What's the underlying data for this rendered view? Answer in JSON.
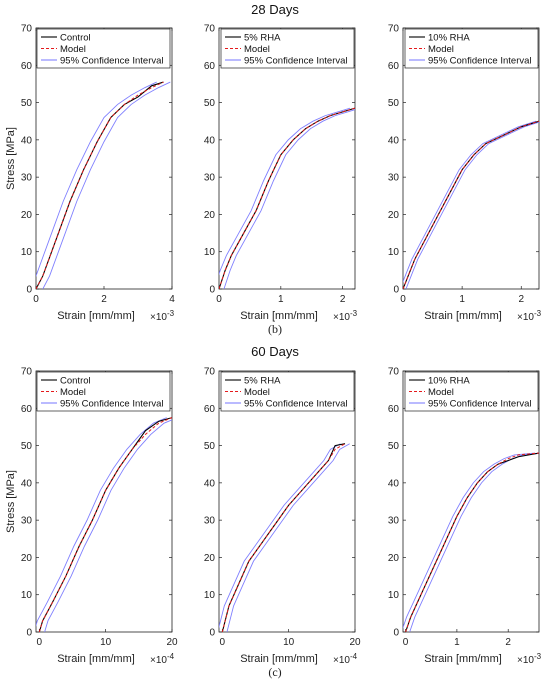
{
  "row_titles": [
    "28 Days",
    "60 Days"
  ],
  "captions": [
    "(b)",
    "(c)"
  ],
  "ylabel": "Stress [MPa]",
  "xlabel": "Strain [mm/mm]",
  "legend_labels": {
    "model": "Model",
    "ci": "95% Confidence Interval"
  },
  "colors": {
    "measured": "#000000",
    "model": "#e41a1c",
    "ci": "#8080ff"
  },
  "chart_data": [
    {
      "type": "line",
      "row": 0,
      "col": 0,
      "legend_name": "Control",
      "xlim": [
        0,
        4
      ],
      "xticks": [
        "0",
        "2",
        "4"
      ],
      "multiplier": "×10",
      "multiplier_exp": "-3",
      "ylim": [
        0,
        70
      ],
      "yticks": [
        "0",
        "10",
        "20",
        "30",
        "40",
        "50",
        "60",
        "70"
      ],
      "legend": "top-left",
      "x": [
        0,
        0.2,
        0.6,
        1.0,
        1.4,
        1.8,
        2.2,
        2.6,
        3.0,
        3.4,
        3.75
      ],
      "measured": [
        0,
        3.5,
        13.5,
        23.5,
        32,
        39.5,
        46,
        49.5,
        51.5,
        54.5,
        55.5
      ],
      "model": [
        0,
        3.5,
        13.5,
        23.5,
        32,
        39.5,
        46,
        49.5,
        52,
        54,
        55.5
      ],
      "ci_offset": 0.2
    },
    {
      "type": "line",
      "row": 0,
      "col": 1,
      "legend_name": "5% RHA",
      "xlim": [
        0,
        2.2
      ],
      "xticks": [
        "0",
        "1",
        "2"
      ],
      "multiplier": "×10",
      "multiplier_exp": "-3",
      "ylim": [
        0,
        70
      ],
      "yticks": [
        "0",
        "10",
        "20",
        "30",
        "40",
        "50",
        "60",
        "70"
      ],
      "legend": "top-right",
      "x": [
        0,
        0.1,
        0.2,
        0.4,
        0.6,
        0.8,
        1.0,
        1.2,
        1.4,
        1.6,
        1.8,
        2.0,
        2.2
      ],
      "measured": [
        0,
        5,
        9,
        15,
        21,
        29,
        36,
        40,
        43,
        45,
        46.5,
        47.5,
        48.5
      ],
      "model": [
        0,
        5,
        9,
        15,
        21,
        29,
        36,
        40,
        43,
        45,
        46.5,
        47.5,
        48.5
      ],
      "ci_offset": 0.08
    },
    {
      "type": "line",
      "row": 0,
      "col": 2,
      "legend_name": "10% RHA",
      "xlim": [
        0,
        2.3
      ],
      "xticks": [
        "0",
        "1",
        "2"
      ],
      "multiplier": "×10",
      "multiplier_exp": "-3",
      "ylim": [
        0,
        70
      ],
      "yticks": [
        "0",
        "10",
        "20",
        "30",
        "40",
        "50",
        "60",
        "70"
      ],
      "legend": "top-right",
      "x": [
        0,
        0.1,
        0.2,
        0.4,
        0.6,
        0.8,
        1.0,
        1.2,
        1.4,
        1.6,
        1.8,
        2.0,
        2.3
      ],
      "measured": [
        0,
        4,
        8,
        14,
        20,
        26,
        32,
        36,
        39,
        40.5,
        42,
        43.5,
        45
      ],
      "model": [
        0,
        4,
        8,
        14,
        20,
        26,
        32,
        36,
        39,
        40.5,
        42,
        43.5,
        45
      ],
      "ci_offset": 0.05
    },
    {
      "type": "line",
      "row": 1,
      "col": 0,
      "legend_name": "Control",
      "xlim": [
        -0.5,
        20
      ],
      "xticks": [
        "0",
        "10",
        "20"
      ],
      "multiplier": "×10",
      "multiplier_exp": "-4",
      "ylim": [
        0,
        70
      ],
      "yticks": [
        "0",
        "10",
        "20",
        "30",
        "40",
        "50",
        "60",
        "70"
      ],
      "legend": "top-left",
      "x": [
        0,
        0.5,
        2,
        4,
        6,
        8,
        10,
        12,
        14,
        16,
        18,
        20
      ],
      "measured": [
        0,
        3,
        8,
        15,
        23,
        30,
        38,
        44,
        49,
        54,
        56.5,
        57.5
      ],
      "model": [
        0,
        3,
        8,
        15,
        23,
        30,
        38,
        44,
        49,
        53,
        56,
        57.5
      ],
      "ci_offset": 0.8
    },
    {
      "type": "line",
      "row": 1,
      "col": 1,
      "legend_name": "5% RHA",
      "xlim": [
        -0.5,
        20
      ],
      "xticks": [
        "0",
        "10",
        "20"
      ],
      "multiplier": "×10",
      "multiplier_exp": "-4",
      "ylim": [
        0,
        70
      ],
      "yticks": [
        "0",
        "10",
        "20",
        "30",
        "40",
        "50",
        "60",
        "70"
      ],
      "legend": "top-right",
      "x": [
        0,
        1,
        2,
        4,
        6,
        8,
        10,
        12,
        14,
        16,
        17,
        18.5
      ],
      "measured": [
        0,
        7,
        11,
        19,
        24,
        29,
        34,
        38,
        42,
        46,
        50,
        50.5
      ],
      "model": [
        0,
        7,
        11,
        19,
        24,
        29,
        34,
        38,
        42,
        46,
        49,
        50.5
      ],
      "ci_offset": 0.7
    },
    {
      "type": "line",
      "row": 1,
      "col": 2,
      "legend_name": "10% RHA",
      "xlim": [
        -0.05,
        2.6
      ],
      "xticks": [
        "0",
        "1",
        "2"
      ],
      "multiplier": "×10",
      "multiplier_exp": "-3",
      "ylim": [
        0,
        70
      ],
      "yticks": [
        "0",
        "10",
        "20",
        "30",
        "40",
        "50",
        "60",
        "70"
      ],
      "legend": "top-right",
      "x": [
        0,
        0.1,
        0.2,
        0.4,
        0.6,
        0.8,
        1.0,
        1.2,
        1.4,
        1.6,
        1.8,
        2.0,
        2.2,
        2.6
      ],
      "measured": [
        0,
        4,
        7,
        13,
        19,
        25,
        31,
        36,
        40,
        43,
        45,
        46,
        47,
        48
      ],
      "model": [
        0,
        4,
        7,
        13,
        19,
        25,
        31,
        36,
        40,
        43,
        45,
        46.5,
        47.5,
        48
      ],
      "ci_offset": 0.08
    }
  ]
}
